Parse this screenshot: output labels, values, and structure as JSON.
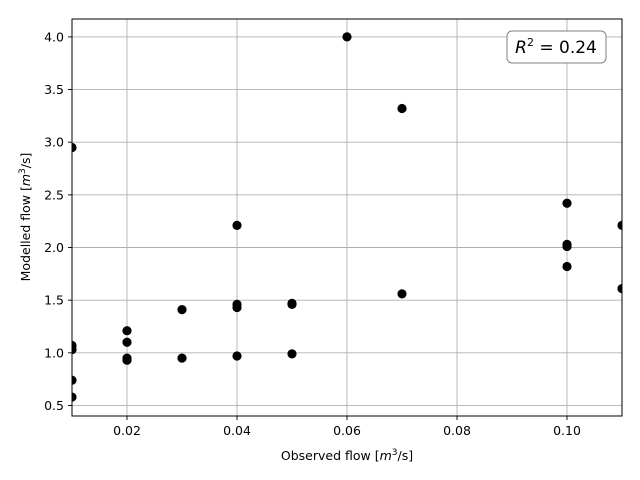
{
  "chart_data": {
    "type": "scatter",
    "title": "",
    "xlabel_main": "Observed flow [",
    "xlabel_unit_base": "m",
    "xlabel_unit_exp": "3",
    "xlabel_unit_tail": "/s]",
    "ylabel_main": "Modelled flow [",
    "ylabel_unit_base": "m",
    "ylabel_unit_exp": "3",
    "ylabel_unit_tail": "/s]",
    "xlim": [
      0.01,
      0.11
    ],
    "ylim": [
      0.4,
      4.17
    ],
    "x_ticks": [
      0.02,
      0.04,
      0.06,
      0.08,
      0.1
    ],
    "x_tick_labels": [
      "0.02",
      "0.04",
      "0.06",
      "0.08",
      "0.10"
    ],
    "y_ticks": [
      0.5,
      1.0,
      1.5,
      2.0,
      2.5,
      3.0,
      3.5,
      4.0
    ],
    "y_tick_labels": [
      "0.5",
      "1.0",
      "1.5",
      "2.0",
      "2.5",
      "3.0",
      "3.5",
      "4.0"
    ],
    "grid": true,
    "marker_color": "#000000",
    "annotation": {
      "base": "R",
      "exp": "2",
      "tail": " = 0.24",
      "placement": "top-right"
    },
    "points": [
      {
        "x": 0.01,
        "y": 2.95
      },
      {
        "x": 0.01,
        "y": 1.07
      },
      {
        "x": 0.01,
        "y": 1.03
      },
      {
        "x": 0.01,
        "y": 0.74
      },
      {
        "x": 0.01,
        "y": 0.58
      },
      {
        "x": 0.02,
        "y": 1.21
      },
      {
        "x": 0.02,
        "y": 1.1
      },
      {
        "x": 0.02,
        "y": 0.95
      },
      {
        "x": 0.02,
        "y": 0.93
      },
      {
        "x": 0.03,
        "y": 1.41
      },
      {
        "x": 0.03,
        "y": 0.95
      },
      {
        "x": 0.04,
        "y": 2.21
      },
      {
        "x": 0.04,
        "y": 1.46
      },
      {
        "x": 0.04,
        "y": 1.43
      },
      {
        "x": 0.04,
        "y": 0.97
      },
      {
        "x": 0.05,
        "y": 1.47
      },
      {
        "x": 0.05,
        "y": 1.46
      },
      {
        "x": 0.05,
        "y": 0.99
      },
      {
        "x": 0.06,
        "y": 4.0
      },
      {
        "x": 0.07,
        "y": 3.32
      },
      {
        "x": 0.07,
        "y": 1.56
      },
      {
        "x": 0.1,
        "y": 2.42
      },
      {
        "x": 0.1,
        "y": 2.03
      },
      {
        "x": 0.1,
        "y": 2.01
      },
      {
        "x": 0.1,
        "y": 1.82
      },
      {
        "x": 0.11,
        "y": 2.21
      },
      {
        "x": 0.11,
        "y": 1.61
      }
    ]
  }
}
